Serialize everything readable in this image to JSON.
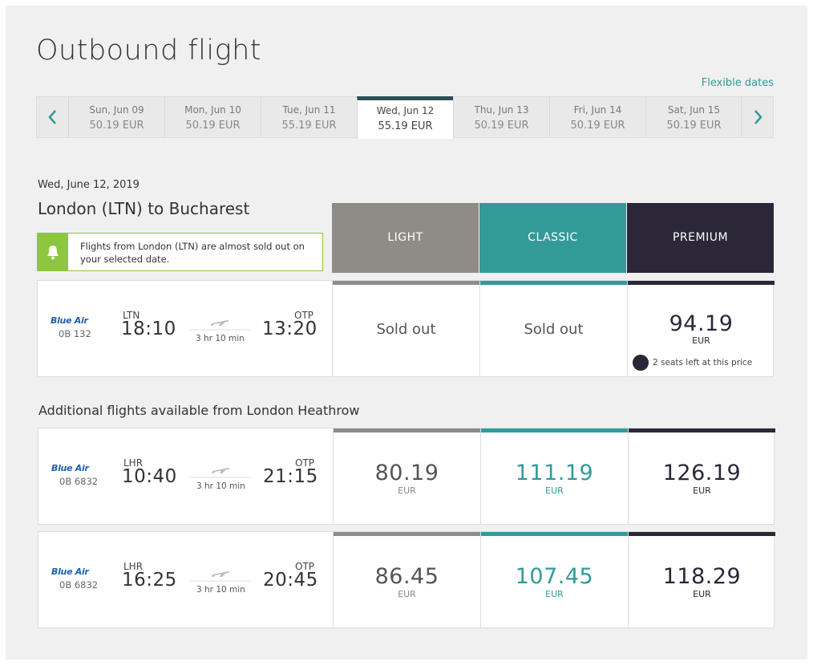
{
  "title": "Outbound flight",
  "flexible_dates": "Flexible dates",
  "dates": [
    {
      "day": "Sun, Jun 09",
      "price": "50.19 EUR"
    },
    {
      "day": "Mon, Jun 10",
      "price": "50.19 EUR"
    },
    {
      "day": "Tue, Jun 11",
      "price": "55.19 EUR"
    },
    {
      "day": "Wed, Jun 12",
      "price": "55.19 EUR"
    },
    {
      "day": "Thu, Jun 13",
      "price": "50.19 EUR"
    },
    {
      "day": "Fri, Jun 14",
      "price": "50.19 EUR"
    },
    {
      "day": "Sat, Jun 15",
      "price": "50.19 EUR"
    }
  ],
  "date": "Wed, June 12, 2019",
  "route": "London (LTN) to Bucharest",
  "alert": "Flights from London (LTN) are almost sold out on your selected date.",
  "fares": [
    "LIGHT",
    "CLASSIC",
    "PREMIUM"
  ],
  "additional_heading": "Additional flights available from London Heathrow",
  "flights": [
    {
      "airline": "Blue Air",
      "number": "0B 132",
      "from": "LTN",
      "departure": "18:10",
      "duration": "3 hr 10 min",
      "to": "OTP",
      "arrival": "13:20",
      "prices": [
        {
          "label": "Sold out"
        },
        {
          "label": "Sold out"
        },
        {
          "amount": "94.19",
          "currency": "EUR",
          "note": "2 seats left at this price"
        }
      ]
    },
    {
      "airline": "Blue Air",
      "number": "0B 6832",
      "from": "LHR",
      "departure": "10:40",
      "duration": "3 hr 10 min",
      "to": "OTP",
      "arrival": "21:15",
      "prices": [
        {
          "amount": "80.19",
          "currency": "EUR"
        },
        {
          "amount": "111.19",
          "currency": "EUR"
        },
        {
          "amount": "126.19",
          "currency": "EUR"
        }
      ]
    },
    {
      "airline": "Blue Air",
      "number": "0B 6832",
      "from": "LHR",
      "departure": "16:25",
      "duration": "3 hr 10 min",
      "to": "OTP",
      "arrival": "20:45",
      "prices": [
        {
          "amount": "86.45",
          "currency": "EUR"
        },
        {
          "amount": "107.45",
          "currency": "EUR"
        },
        {
          "amount": "118.29",
          "currency": "EUR"
        }
      ]
    }
  ]
}
